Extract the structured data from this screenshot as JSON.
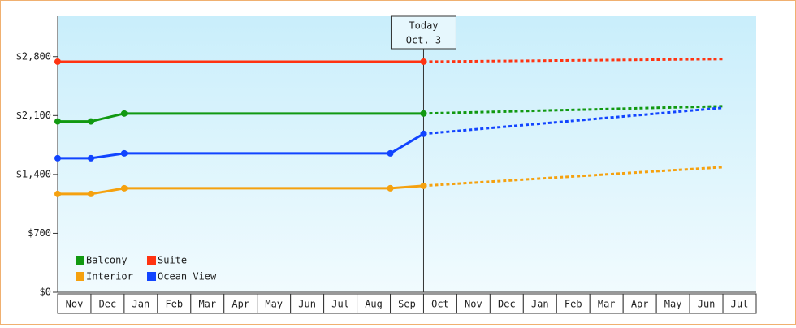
{
  "chart_data": {
    "type": "line",
    "categories": [
      "Nov",
      "Dec",
      "Jan",
      "Feb",
      "Mar",
      "Apr",
      "May",
      "Jun",
      "Jul",
      "Aug",
      "Sep",
      "Oct",
      "Nov",
      "Dec",
      "Jan",
      "Feb",
      "Mar",
      "Apr",
      "May",
      "Jun",
      "Jul"
    ],
    "series": [
      {
        "name": "Balcony",
        "color": "#119911",
        "values": [
          2030,
          2030,
          2124,
          2124,
          2124,
          2124,
          2124,
          2124,
          2124,
          2124,
          2124,
          2124,
          null,
          null,
          null,
          null,
          null,
          null,
          null,
          null,
          null
        ],
        "forecast": [
          null,
          null,
          null,
          null,
          null,
          null,
          null,
          null,
          null,
          null,
          null,
          2124,
          2134,
          2143,
          2153,
          2163,
          2172,
          2182,
          2192,
          2201,
          2211
        ]
      },
      {
        "name": "Suite",
        "color": "#ff3311",
        "values": [
          2740,
          2740,
          2740,
          2740,
          2740,
          2740,
          2740,
          2740,
          2740,
          2740,
          2740,
          2740,
          null,
          null,
          null,
          null,
          null,
          null,
          null,
          null,
          null
        ],
        "forecast": [
          null,
          null,
          null,
          null,
          null,
          null,
          null,
          null,
          null,
          null,
          null,
          2740,
          2743,
          2747,
          2750,
          2754,
          2757,
          2761,
          2764,
          2768,
          2771
        ]
      },
      {
        "name": "Interior",
        "color": "#f5a10f",
        "values": [
          1168,
          1168,
          1236,
          1236,
          1236,
          1236,
          1236,
          1236,
          1236,
          1236,
          1236,
          1265,
          null,
          null,
          null,
          null,
          null,
          null,
          null,
          null,
          null
        ],
        "forecast": [
          null,
          null,
          null,
          null,
          null,
          null,
          null,
          null,
          null,
          null,
          null,
          1265,
          1290,
          1314,
          1339,
          1364,
          1388,
          1413,
          1438,
          1462,
          1487
        ]
      },
      {
        "name": "Ocean View",
        "color": "#1144ff",
        "values": [
          1593,
          1593,
          1651,
          1651,
          1651,
          1651,
          1651,
          1651,
          1651,
          1651,
          1651,
          1883,
          null,
          null,
          null,
          null,
          null,
          null,
          null,
          null,
          null
        ],
        "forecast": [
          null,
          null,
          null,
          null,
          null,
          null,
          null,
          null,
          null,
          null,
          null,
          1883,
          1917,
          1952,
          1986,
          2020,
          2055,
          2089,
          2123,
          2158,
          2192
        ]
      }
    ],
    "annotation": {
      "title": "Today",
      "date": "Oct. 3"
    },
    "ylim": [
      0,
      3280
    ],
    "yticks": [
      {
        "value": 0,
        "label": "$0"
      },
      {
        "value": 700,
        "label": "$700"
      },
      {
        "value": 1400,
        "label": "$1,400"
      },
      {
        "value": 2100,
        "label": "$2,100"
      },
      {
        "value": 2800,
        "label": "$2,800"
      }
    ],
    "legend": "lower left"
  }
}
